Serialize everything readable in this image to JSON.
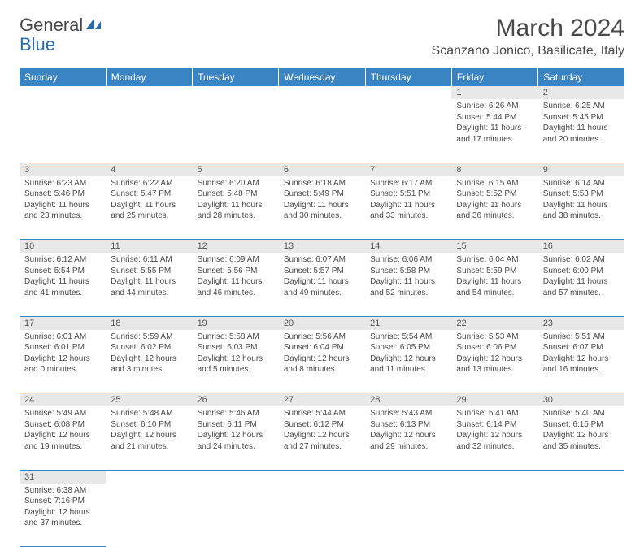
{
  "logo": {
    "part1": "General",
    "part2": "Blue"
  },
  "title": {
    "month": "March 2024",
    "location": "Scanzano Jonico, Basilicate, Italy"
  },
  "colors": {
    "header_bg": "#3b84c4",
    "header_text": "#ffffff",
    "daynum_bg": "#e8e8e8",
    "border": "#3b84c4",
    "text": "#4a4a4a",
    "logo_blue": "#2a6bb0"
  },
  "weekdays": [
    "Sunday",
    "Monday",
    "Tuesday",
    "Wednesday",
    "Thursday",
    "Friday",
    "Saturday"
  ],
  "weeks": [
    [
      null,
      null,
      null,
      null,
      null,
      {
        "n": "1",
        "sunrise": "Sunrise: 6:26 AM",
        "sunset": "Sunset: 5:44 PM",
        "daylight": "Daylight: 11 hours and 17 minutes."
      },
      {
        "n": "2",
        "sunrise": "Sunrise: 6:25 AM",
        "sunset": "Sunset: 5:45 PM",
        "daylight": "Daylight: 11 hours and 20 minutes."
      }
    ],
    [
      {
        "n": "3",
        "sunrise": "Sunrise: 6:23 AM",
        "sunset": "Sunset: 5:46 PM",
        "daylight": "Daylight: 11 hours and 23 minutes."
      },
      {
        "n": "4",
        "sunrise": "Sunrise: 6:22 AM",
        "sunset": "Sunset: 5:47 PM",
        "daylight": "Daylight: 11 hours and 25 minutes."
      },
      {
        "n": "5",
        "sunrise": "Sunrise: 6:20 AM",
        "sunset": "Sunset: 5:48 PM",
        "daylight": "Daylight: 11 hours and 28 minutes."
      },
      {
        "n": "6",
        "sunrise": "Sunrise: 6:18 AM",
        "sunset": "Sunset: 5:49 PM",
        "daylight": "Daylight: 11 hours and 30 minutes."
      },
      {
        "n": "7",
        "sunrise": "Sunrise: 6:17 AM",
        "sunset": "Sunset: 5:51 PM",
        "daylight": "Daylight: 11 hours and 33 minutes."
      },
      {
        "n": "8",
        "sunrise": "Sunrise: 6:15 AM",
        "sunset": "Sunset: 5:52 PM",
        "daylight": "Daylight: 11 hours and 36 minutes."
      },
      {
        "n": "9",
        "sunrise": "Sunrise: 6:14 AM",
        "sunset": "Sunset: 5:53 PM",
        "daylight": "Daylight: 11 hours and 38 minutes."
      }
    ],
    [
      {
        "n": "10",
        "sunrise": "Sunrise: 6:12 AM",
        "sunset": "Sunset: 5:54 PM",
        "daylight": "Daylight: 11 hours and 41 minutes."
      },
      {
        "n": "11",
        "sunrise": "Sunrise: 6:11 AM",
        "sunset": "Sunset: 5:55 PM",
        "daylight": "Daylight: 11 hours and 44 minutes."
      },
      {
        "n": "12",
        "sunrise": "Sunrise: 6:09 AM",
        "sunset": "Sunset: 5:56 PM",
        "daylight": "Daylight: 11 hours and 46 minutes."
      },
      {
        "n": "13",
        "sunrise": "Sunrise: 6:07 AM",
        "sunset": "Sunset: 5:57 PM",
        "daylight": "Daylight: 11 hours and 49 minutes."
      },
      {
        "n": "14",
        "sunrise": "Sunrise: 6:06 AM",
        "sunset": "Sunset: 5:58 PM",
        "daylight": "Daylight: 11 hours and 52 minutes."
      },
      {
        "n": "15",
        "sunrise": "Sunrise: 6:04 AM",
        "sunset": "Sunset: 5:59 PM",
        "daylight": "Daylight: 11 hours and 54 minutes."
      },
      {
        "n": "16",
        "sunrise": "Sunrise: 6:02 AM",
        "sunset": "Sunset: 6:00 PM",
        "daylight": "Daylight: 11 hours and 57 minutes."
      }
    ],
    [
      {
        "n": "17",
        "sunrise": "Sunrise: 6:01 AM",
        "sunset": "Sunset: 6:01 PM",
        "daylight": "Daylight: 12 hours and 0 minutes."
      },
      {
        "n": "18",
        "sunrise": "Sunrise: 5:59 AM",
        "sunset": "Sunset: 6:02 PM",
        "daylight": "Daylight: 12 hours and 3 minutes."
      },
      {
        "n": "19",
        "sunrise": "Sunrise: 5:58 AM",
        "sunset": "Sunset: 6:03 PM",
        "daylight": "Daylight: 12 hours and 5 minutes."
      },
      {
        "n": "20",
        "sunrise": "Sunrise: 5:56 AM",
        "sunset": "Sunset: 6:04 PM",
        "daylight": "Daylight: 12 hours and 8 minutes."
      },
      {
        "n": "21",
        "sunrise": "Sunrise: 5:54 AM",
        "sunset": "Sunset: 6:05 PM",
        "daylight": "Daylight: 12 hours and 11 minutes."
      },
      {
        "n": "22",
        "sunrise": "Sunrise: 5:53 AM",
        "sunset": "Sunset: 6:06 PM",
        "daylight": "Daylight: 12 hours and 13 minutes."
      },
      {
        "n": "23",
        "sunrise": "Sunrise: 5:51 AM",
        "sunset": "Sunset: 6:07 PM",
        "daylight": "Daylight: 12 hours and 16 minutes."
      }
    ],
    [
      {
        "n": "24",
        "sunrise": "Sunrise: 5:49 AM",
        "sunset": "Sunset: 6:08 PM",
        "daylight": "Daylight: 12 hours and 19 minutes."
      },
      {
        "n": "25",
        "sunrise": "Sunrise: 5:48 AM",
        "sunset": "Sunset: 6:10 PM",
        "daylight": "Daylight: 12 hours and 21 minutes."
      },
      {
        "n": "26",
        "sunrise": "Sunrise: 5:46 AM",
        "sunset": "Sunset: 6:11 PM",
        "daylight": "Daylight: 12 hours and 24 minutes."
      },
      {
        "n": "27",
        "sunrise": "Sunrise: 5:44 AM",
        "sunset": "Sunset: 6:12 PM",
        "daylight": "Daylight: 12 hours and 27 minutes."
      },
      {
        "n": "28",
        "sunrise": "Sunrise: 5:43 AM",
        "sunset": "Sunset: 6:13 PM",
        "daylight": "Daylight: 12 hours and 29 minutes."
      },
      {
        "n": "29",
        "sunrise": "Sunrise: 5:41 AM",
        "sunset": "Sunset: 6:14 PM",
        "daylight": "Daylight: 12 hours and 32 minutes."
      },
      {
        "n": "30",
        "sunrise": "Sunrise: 5:40 AM",
        "sunset": "Sunset: 6:15 PM",
        "daylight": "Daylight: 12 hours and 35 minutes."
      }
    ],
    [
      {
        "n": "31",
        "sunrise": "Sunrise: 6:38 AM",
        "sunset": "Sunset: 7:16 PM",
        "daylight": "Daylight: 12 hours and 37 minutes."
      },
      null,
      null,
      null,
      null,
      null,
      null
    ]
  ]
}
